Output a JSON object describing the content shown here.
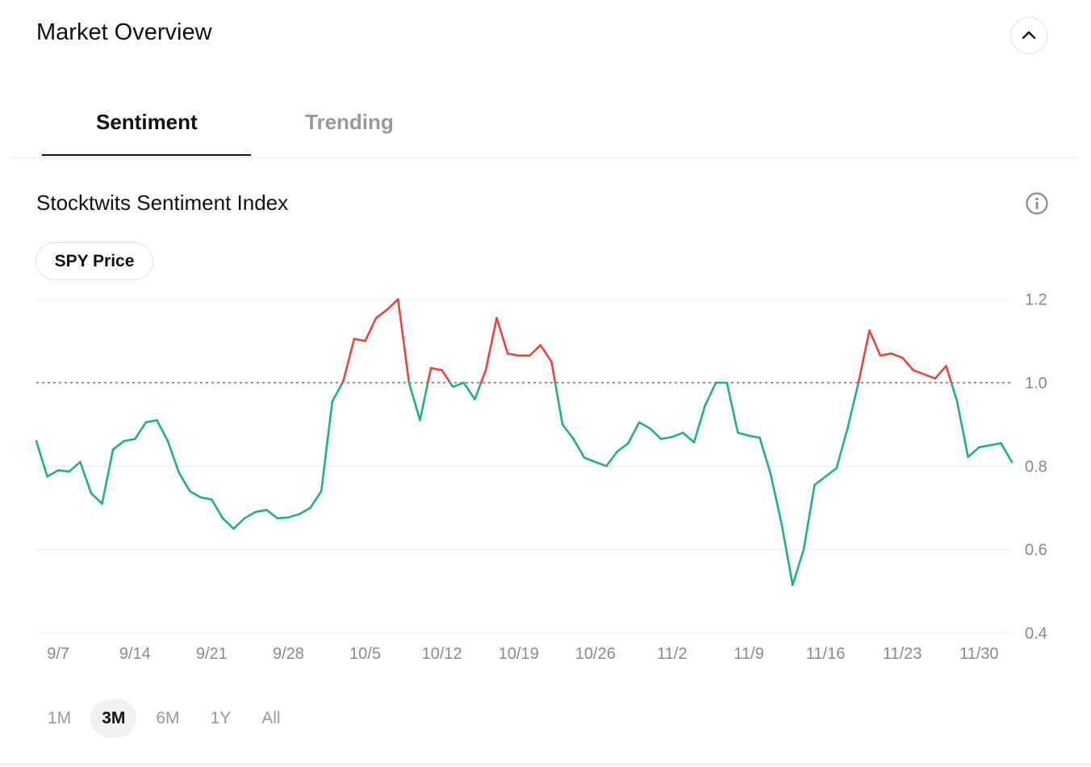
{
  "header": {
    "title": "Market Overview"
  },
  "tabs": [
    {
      "label": "Sentiment",
      "active": true
    },
    {
      "label": "Trending",
      "active": false
    }
  ],
  "section": {
    "title": "Stocktwits Sentiment Index",
    "info_icon": "info-circle-icon"
  },
  "overlay_toggle": {
    "label": "SPY Price"
  },
  "range_selector": {
    "options": [
      "1M",
      "3M",
      "6M",
      "1Y",
      "All"
    ],
    "selected": "3M"
  },
  "colors": {
    "positive": "#e8453c",
    "neutral": "#1fb37a",
    "threshold_line": "#555555"
  },
  "chart_data": {
    "type": "line",
    "title": "Stocktwits Sentiment Index",
    "x_ticks": [
      "9/7",
      "9/14",
      "9/21",
      "9/28",
      "10/5",
      "10/12",
      "10/19",
      "10/26",
      "11/2",
      "11/9",
      "11/16",
      "11/23",
      "11/30"
    ],
    "y_ticks": [
      "1.2",
      "1.0",
      "0.8",
      "0.6",
      "0.4"
    ],
    "ylim": [
      0.4,
      1.22
    ],
    "threshold": 1.0,
    "x_range_days": [
      0,
      89
    ],
    "grid": true,
    "series": [
      {
        "x_days": [
          0,
          1,
          2,
          3,
          4,
          5,
          6,
          7,
          8,
          9,
          10,
          11,
          12,
          13,
          14,
          15,
          16,
          17,
          18,
          19,
          20,
          21,
          22,
          23,
          24,
          25,
          26,
          27,
          28,
          29,
          30,
          31,
          32,
          33,
          34,
          35,
          36,
          37,
          38,
          39,
          40,
          41,
          42,
          43,
          44,
          45,
          46,
          47,
          48,
          49,
          50,
          51,
          52,
          53,
          54,
          55,
          56,
          57,
          58,
          59,
          60,
          61,
          62,
          63,
          64,
          65,
          66,
          67,
          68,
          69,
          70,
          71,
          72,
          73,
          74,
          75,
          76,
          77,
          78,
          79,
          80,
          81,
          82,
          83,
          84,
          85,
          86,
          87,
          88,
          89
        ],
        "values": [
          0.86,
          0.775,
          0.79,
          0.787,
          0.81,
          0.735,
          0.71,
          0.84,
          0.86,
          0.865,
          0.905,
          0.91,
          0.86,
          0.785,
          0.74,
          0.725,
          0.72,
          0.675,
          0.65,
          0.675,
          0.69,
          0.695,
          0.675,
          0.677,
          0.685,
          0.7,
          0.74,
          0.955,
          1.003,
          1.105,
          1.1,
          1.155,
          1.175,
          1.2,
          1.0,
          0.91,
          1.035,
          1.03,
          0.99,
          1.0,
          0.96,
          1.03,
          1.155,
          1.07,
          1.065,
          1.065,
          1.09,
          1.05,
          0.9,
          0.865,
          0.82,
          0.81,
          0.8,
          0.835,
          0.855,
          0.905,
          0.89,
          0.865,
          0.87,
          0.88,
          0.857,
          0.945,
          1.0,
          1.0,
          0.88,
          0.873,
          0.868,
          0.78,
          0.66,
          0.515,
          0.6,
          0.755,
          0.775,
          0.795,
          0.89,
          1.0,
          1.125,
          1.065,
          1.07,
          1.06,
          1.03,
          1.02,
          1.01,
          1.04,
          0.955,
          0.822,
          0.845,
          0.85,
          0.855,
          0.81
        ]
      }
    ]
  }
}
